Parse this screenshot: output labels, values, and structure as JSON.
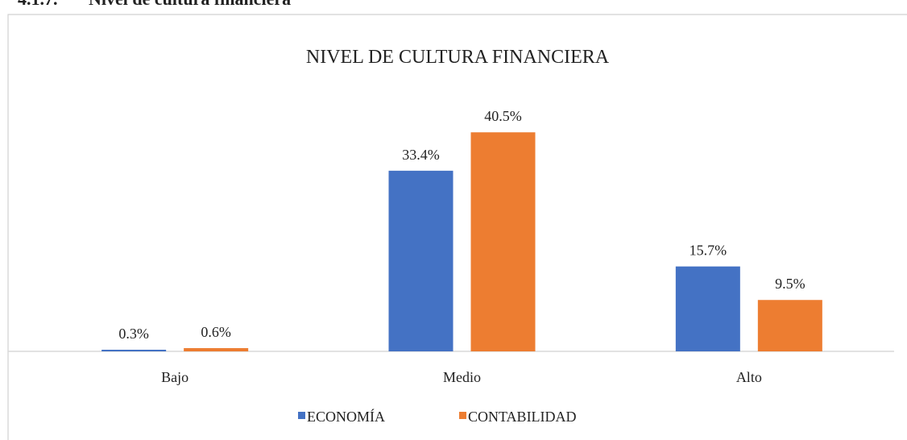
{
  "header": {
    "number": "4.1.7.",
    "title": "Nivel de cultura financiera"
  },
  "chart_data": {
    "type": "bar",
    "title": "NIVEL DE CULTURA FINANCIERA",
    "categories": [
      "Bajo",
      "Medio",
      "Alto"
    ],
    "series": [
      {
        "name": "ECONOMÍA",
        "color": "#4472c4",
        "values": [
          0.3,
          33.4,
          15.7
        ],
        "value_labels": [
          "0.3%",
          "33.4%",
          "15.7%"
        ]
      },
      {
        "name": "CONTABILIDAD",
        "color": "#ed7d31",
        "values": [
          0.6,
          40.5,
          9.5
        ],
        "value_labels": [
          "0.6%",
          "40.5%",
          "9.5%"
        ]
      }
    ],
    "ylim": [
      0,
      45
    ],
    "legend": "bottom"
  }
}
